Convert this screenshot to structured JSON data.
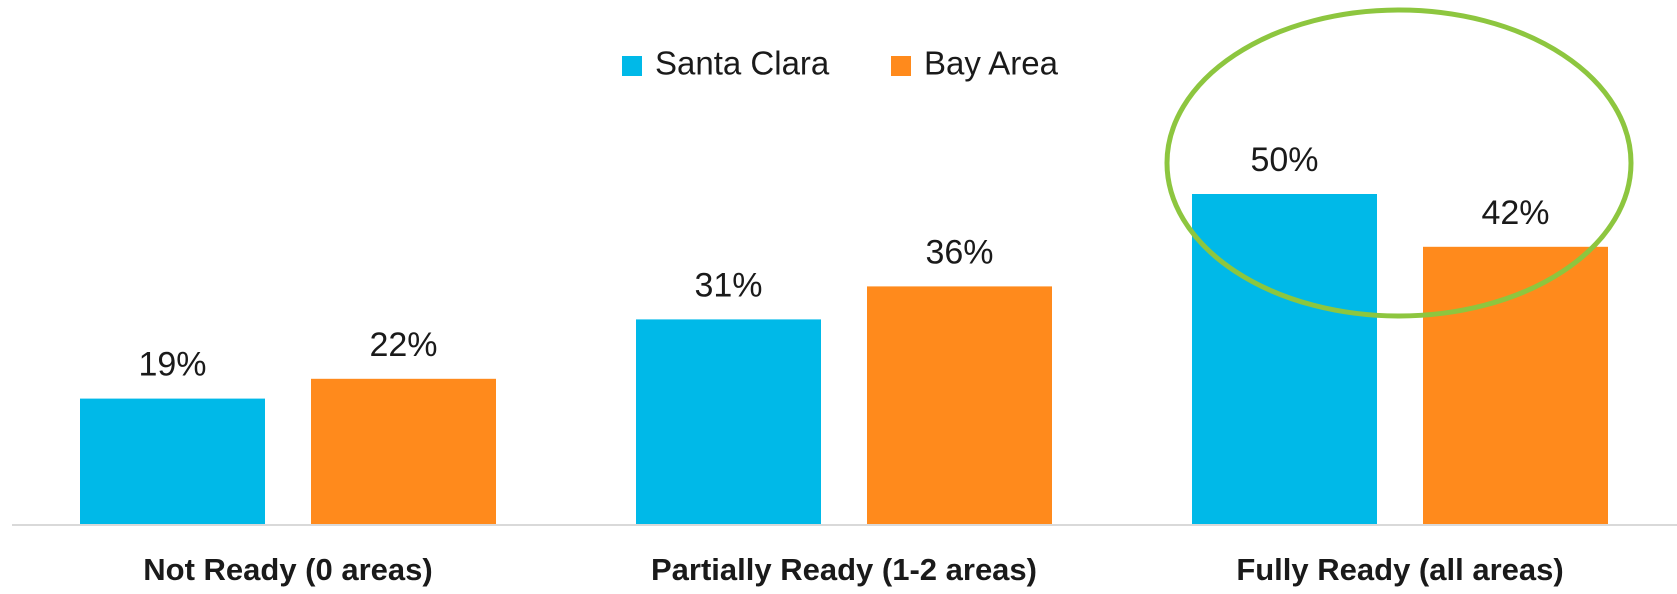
{
  "chart_data": {
    "type": "bar",
    "categories": [
      "Not Ready (0 areas)",
      "Partially Ready (1-2 areas)",
      "Fully Ready (all areas)"
    ],
    "series": [
      {
        "name": "Santa Clara",
        "color": "#00b9e8",
        "values": [
          19,
          31,
          50
        ],
        "value_labels": [
          "19%",
          "31%",
          "50%"
        ]
      },
      {
        "name": "Bay Area",
        "color": "#ff8a1c",
        "values": [
          22,
          36,
          42
        ],
        "value_labels": [
          "22%",
          "36%",
          "42%"
        ]
      }
    ],
    "ylim": [
      0,
      75
    ],
    "grid": false,
    "legend": "top"
  }
}
